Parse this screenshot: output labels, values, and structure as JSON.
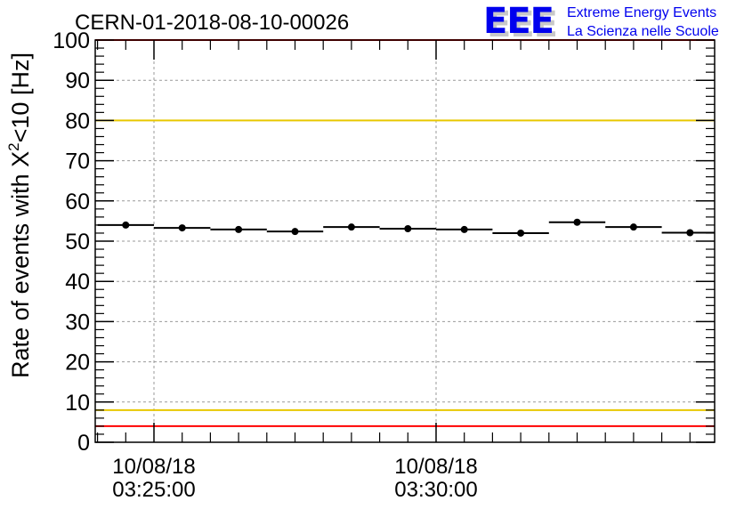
{
  "header": {
    "run_id": "CERN-01-2018-08-10-00026"
  },
  "logo": {
    "mark": "EEE",
    "line1": "Extreme Energy Events",
    "line2": "La Scienza nelle Scuole",
    "color": "#0000ee"
  },
  "chart_data": {
    "type": "scatter",
    "title": "",
    "ylabel_prefix": "Rate of events with X",
    "ylabel_superscript": "2",
    "ylabel_suffix": "<10 [Hz]",
    "xlabel": "",
    "ylim": [
      0,
      100
    ],
    "y_ticks": [
      0,
      10,
      20,
      30,
      40,
      50,
      60,
      70,
      80,
      90,
      100
    ],
    "x_ticks": [
      {
        "date": "10/08/18",
        "time": "03:25:00"
      },
      {
        "date": "10/08/18",
        "time": "03:30:00"
      }
    ],
    "grid": true,
    "reference_lines": [
      {
        "y": 100,
        "color": "#ff0000"
      },
      {
        "y": 80,
        "color": "#e8c800"
      },
      {
        "y": 8,
        "color": "#e8c800"
      },
      {
        "y": 4,
        "color": "#ff0000"
      }
    ],
    "bin_minutes": 1,
    "series": [
      {
        "x": [
          "03:24:00",
          "03:25:00",
          "03:26:00",
          "03:27:00",
          "03:28:00",
          "03:29:00",
          "03:30:00",
          "03:31:00",
          "03:32:00",
          "03:33:00",
          "03:34:00"
        ],
        "values": [
          54.0,
          53.3,
          52.9,
          52.4,
          53.5,
          53.1,
          52.9,
          52.0,
          54.7,
          53.5,
          52.1
        ],
        "color": "#000000"
      }
    ]
  }
}
